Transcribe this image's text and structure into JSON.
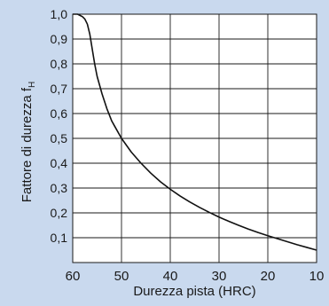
{
  "colors": {
    "background": "#c9d9ee",
    "plot_background": "#ffffff",
    "grid": "#1a1a1a",
    "curve": "#111111"
  },
  "chart_data": {
    "type": "line",
    "title": "",
    "xlabel": "Durezza pista (HRC)",
    "ylabel_main": "Fattore di durezza f",
    "ylabel_subscript": "H",
    "xlim": [
      60,
      10
    ],
    "ylim": [
      0,
      1.0
    ],
    "x_reversed": true,
    "grid": true,
    "legend": "none",
    "x_ticks": [
      60,
      50,
      40,
      30,
      20,
      10
    ],
    "x_tick_labels": [
      "60",
      "50",
      "40",
      "30",
      "20",
      "10"
    ],
    "y_ticks": [
      0.1,
      0.2,
      0.3,
      0.4,
      0.5,
      0.6,
      0.7,
      0.8,
      0.9,
      1.0
    ],
    "y_tick_labels": [
      "0,1",
      "0,2",
      "0,3",
      "0,4",
      "0,5",
      "0,6",
      "0,7",
      "0,8",
      "0,9",
      "1,0"
    ],
    "series": [
      {
        "x": [
          60,
          59,
          58.5,
          58,
          57.5,
          57,
          56.5,
          56,
          55.5,
          55,
          54,
          53,
          52,
          51,
          50,
          48,
          46,
          44,
          42,
          40,
          38,
          36,
          34,
          32,
          30,
          28,
          26,
          24,
          22,
          20,
          18,
          16,
          14,
          12,
          10
        ],
        "y": [
          1.0,
          1.0,
          0.995,
          0.99,
          0.98,
          0.96,
          0.92,
          0.86,
          0.8,
          0.75,
          0.68,
          0.62,
          0.57,
          0.535,
          0.5,
          0.445,
          0.4,
          0.36,
          0.325,
          0.295,
          0.268,
          0.244,
          0.222,
          0.202,
          0.183,
          0.166,
          0.15,
          0.135,
          0.121,
          0.108,
          0.096,
          0.084,
          0.072,
          0.061,
          0.05
        ]
      }
    ]
  }
}
